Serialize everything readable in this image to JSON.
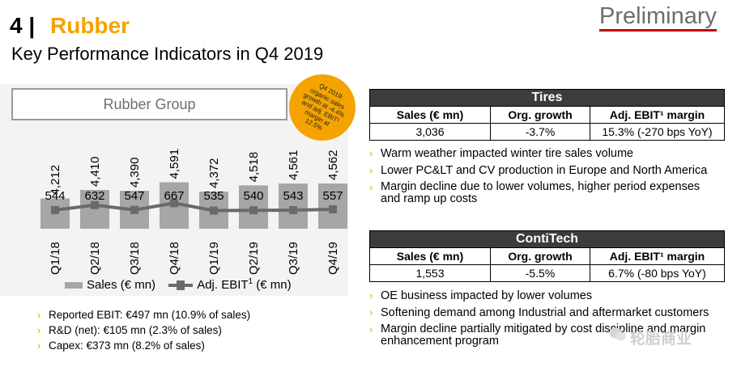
{
  "header": {
    "section_number": "4 |",
    "section_name": "Rubber",
    "subtitle": "Key Performance Indicators in Q4 2019",
    "stamp": "Preliminary"
  },
  "rubber_group": {
    "box_label": "Rubber Group",
    "badge_lines": [
      "Q4 2019:",
      "organic sales",
      "growth at -4.4%",
      "and adj. EBIT¹",
      "margin at",
      "12.5%"
    ]
  },
  "chart_data": {
    "type": "bar",
    "categories": [
      "Q1/18",
      "Q2/18",
      "Q3/18",
      "Q4/18",
      "Q1/19",
      "Q2/19",
      "Q3/19",
      "Q4/19"
    ],
    "series": [
      {
        "name": "Sales (€ mn)",
        "kind": "bar",
        "values": [
          4212,
          4410,
          4390,
          4591,
          4372,
          4518,
          4561,
          4562
        ],
        "labels": [
          "4,212",
          "4,410",
          "4,390",
          "4,591",
          "4,372",
          "4,518",
          "4,561",
          "4,562"
        ]
      },
      {
        "name": "Adj. EBIT¹ (€ mn)",
        "kind": "line",
        "values": [
          544,
          632,
          547,
          667,
          535,
          540,
          543,
          557
        ],
        "labels": [
          "544",
          "632",
          "547",
          "667",
          "535",
          "540",
          "543",
          "557"
        ]
      }
    ],
    "colors": {
      "bars": "#a6a6a6",
      "line": "#6a6a6a"
    }
  },
  "legend": {
    "sales": "Sales (€ mn)",
    "ebit_pre": "Adj. EBIT",
    "ebit_sup": "1",
    "ebit_post": " (€ mn)"
  },
  "left_bullets": [
    "Reported EBIT: €497 mn (10.9% of sales)",
    "R&D (net): €105 mn (2.3% of sales)",
    "Capex: €373 mn (8.2% of sales)"
  ],
  "tires": {
    "title": "Tires",
    "headers": [
      "Sales (€ mn)",
      "Org. growth",
      "Adj. EBIT¹ margin"
    ],
    "values": [
      "3,036",
      "-3.7%",
      "15.3% (-270 bps YoY)"
    ],
    "bullets": [
      "Warm weather impacted winter tire sales volume",
      "Lower PC&LT and CV production in Europe and North America",
      "Margin decline due to lower volumes, higher period expenses and ramp up costs"
    ]
  },
  "contitech": {
    "title": "ContiTech",
    "headers": [
      "Sales (€ mn)",
      "Org. growth",
      "Adj. EBIT¹ margin"
    ],
    "values": [
      "1,553",
      "-5.5%",
      "6.7% (-80 bps YoY)"
    ],
    "bullets": [
      "OE business impacted by lower volumes",
      "Softening demand among Industrial and aftermarket customers",
      "Margin decline partially mitigated by cost discipline and margin enhancement program"
    ]
  },
  "watermark": "轮胎商业",
  "bullet_glyph": "›",
  "accent_color": "#f5a300"
}
